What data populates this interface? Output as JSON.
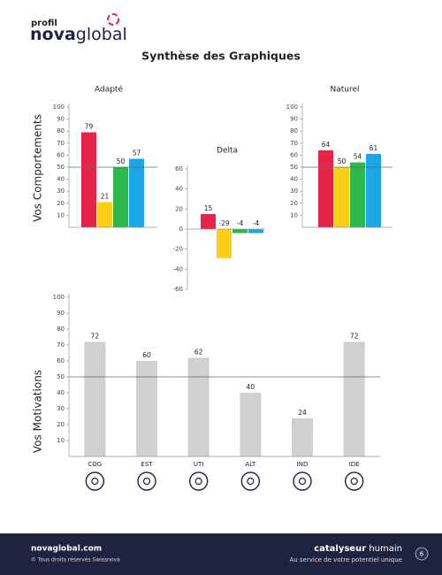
{
  "header": {
    "logo_prefix": "profil",
    "logo_nova": "nova",
    "logo_global": "global",
    "title": "Synthèse des Graphiques"
  },
  "chart_data": [
    {
      "type": "bar",
      "title": "Adapté",
      "ylabel": "Vos Comportements",
      "values": [
        79,
        21,
        50,
        57
      ],
      "colors": [
        "#e8234a",
        "#fdd017",
        "#2db84b",
        "#1aa7e8"
      ],
      "ylim": [
        0,
        100
      ],
      "yticks": [
        10,
        20,
        30,
        40,
        50,
        60,
        70,
        80,
        90,
        100
      ],
      "hline": 50
    },
    {
      "type": "bar",
      "title": "Delta",
      "values": [
        15,
        -29,
        -4,
        -4
      ],
      "colors": [
        "#e8234a",
        "#fdd017",
        "#2db84b",
        "#1aa7e8"
      ],
      "ylim": [
        -60,
        60
      ],
      "yticks": [
        -60,
        -40,
        -20,
        0,
        20,
        40,
        60
      ]
    },
    {
      "type": "bar",
      "title": "Naturel",
      "values": [
        64,
        50,
        54,
        61
      ],
      "colors": [
        "#e8234a",
        "#fdd017",
        "#2db84b",
        "#1aa7e8"
      ],
      "ylim": [
        0,
        100
      ],
      "yticks": [
        10,
        20,
        30,
        40,
        50,
        60,
        70,
        80,
        90,
        100
      ],
      "hline": 50
    },
    {
      "type": "bar",
      "ylabel": "Vos Motivations",
      "categories": [
        "COG",
        "EST",
        "UTI",
        "ALT",
        "IND",
        "IDE"
      ],
      "values": [
        72,
        60,
        62,
        40,
        24,
        72
      ],
      "color": "#d0d0d0",
      "ylim": [
        0,
        100
      ],
      "yticks": [
        10,
        20,
        30,
        40,
        50,
        60,
        70,
        80,
        90,
        100
      ],
      "hline": 50
    }
  ],
  "footer": {
    "site": "novaglobal.com",
    "rights": "© Tous droits réservés Swissnova",
    "brand_bold": "catalyseur",
    "brand_light": "humain",
    "tagline": "Au service de votre potentiel unique",
    "page": "6"
  }
}
